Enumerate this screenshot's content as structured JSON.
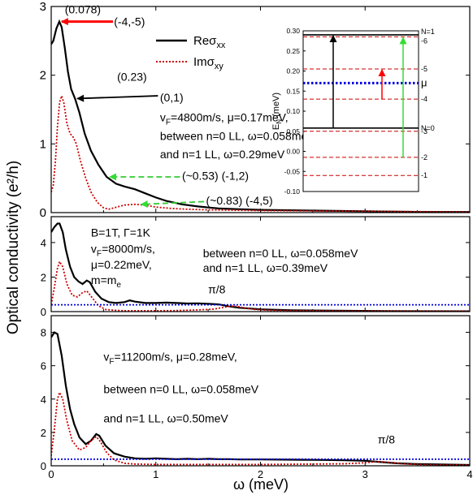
{
  "figure": {
    "y_axis_label": "Optical conductivity  (e²/h)",
    "x_axis_label": "ω (meV)"
  },
  "chart_data": [
    {
      "type": "line",
      "panel": "top",
      "xlim": [
        0,
        4
      ],
      "ylim": [
        0,
        3
      ],
      "x_ticks": [
        0,
        1,
        2,
        3,
        4
      ],
      "y_ticks": [
        0,
        1,
        2,
        3
      ],
      "legend": {
        "placement": "top-center",
        "entries": [
          "Reσxx",
          "Imσxy"
        ]
      },
      "series": [
        {
          "name": "Reσxx",
          "color": "#000000",
          "style": "solid",
          "points": [
            [
              0,
              2.45
            ],
            [
              0.02,
              2.5
            ],
            [
              0.05,
              2.68
            ],
            [
              0.078,
              2.78
            ],
            [
              0.1,
              2.7
            ],
            [
              0.13,
              2.4
            ],
            [
              0.16,
              2.05
            ],
            [
              0.19,
              1.8
            ],
            [
              0.23,
              1.65
            ],
            [
              0.27,
              1.45
            ],
            [
              0.32,
              1.15
            ],
            [
              0.38,
              0.9
            ],
            [
              0.45,
              0.7
            ],
            [
              0.53,
              0.52
            ],
            [
              0.62,
              0.42
            ],
            [
              0.7,
              0.38
            ],
            [
              0.8,
              0.34
            ],
            [
              0.9,
              0.28
            ],
            [
              1.0,
              0.22
            ],
            [
              1.1,
              0.17
            ],
            [
              1.25,
              0.12
            ],
            [
              1.4,
              0.09
            ],
            [
              1.6,
              0.06
            ],
            [
              1.8,
              0.05
            ],
            [
              2.0,
              0.04
            ],
            [
              2.5,
              0.03
            ],
            [
              3.0,
              0.02
            ],
            [
              3.5,
              0.01
            ],
            [
              4.0,
              0.01
            ]
          ]
        },
        {
          "name": "Imσxy",
          "color": "#cc0000",
          "style": "dotted",
          "points": [
            [
              0,
              0.3
            ],
            [
              0.02,
              0.4
            ],
            [
              0.04,
              0.75
            ],
            [
              0.06,
              1.25
            ],
            [
              0.08,
              1.6
            ],
            [
              0.1,
              1.7
            ],
            [
              0.12,
              1.6
            ],
            [
              0.15,
              1.3
            ],
            [
              0.18,
              1.15
            ],
            [
              0.21,
              1.1
            ],
            [
              0.24,
              1.0
            ],
            [
              0.28,
              0.75
            ],
            [
              0.33,
              0.5
            ],
            [
              0.38,
              0.3
            ],
            [
              0.44,
              0.15
            ],
            [
              0.5,
              0.07
            ],
            [
              0.55,
              0.05
            ],
            [
              0.6,
              0.07
            ],
            [
              0.7,
              0.11
            ],
            [
              0.8,
              0.12
            ],
            [
              0.9,
              0.11
            ],
            [
              1.0,
              0.08
            ],
            [
              1.15,
              0.06
            ],
            [
              1.3,
              0.05
            ],
            [
              1.5,
              0.04
            ],
            [
              2.0,
              0.03
            ],
            [
              3.0,
              0.02
            ],
            [
              4.0,
              0.01
            ]
          ]
        }
      ],
      "annotations": [
        {
          "text": "(0.078)",
          "x": 0.13,
          "y": 2.9
        },
        {
          "text": "(-4,-5)",
          "x": 0.6,
          "y": 2.72,
          "arrow_color": "#ff0000"
        },
        {
          "text": "(0.23)",
          "x": 0.63,
          "y": 1.92
        },
        {
          "text": "(0,1)",
          "x": 1.04,
          "y": 1.62,
          "arrow_color": "#000000"
        },
        {
          "text": "vF=4800m/s,  μ=0.17meV,",
          "x": 1.04,
          "y": 1.33
        },
        {
          "text": "between n=0 LL, ω=0.058meV",
          "x": 1.04,
          "y": 1.06
        },
        {
          "text": "and n=1 LL, ω=0.29meV",
          "x": 1.04,
          "y": 0.79
        },
        {
          "text": "(~0.53) (-1,2)",
          "x": 1.25,
          "y": 0.48,
          "arrow_color": "#33cc33"
        },
        {
          "text": "(~0.83) (-4,5)",
          "x": 1.48,
          "y": 0.12,
          "arrow_color": "#33cc33"
        }
      ]
    },
    {
      "type": "line",
      "panel": "inset",
      "ylabel": "E_N (meV)",
      "ylim": [
        -0.1,
        0.3
      ],
      "y_ticks": [
        "0.30",
        "0.25",
        "0.20",
        "0.15",
        "0.10",
        "0.05",
        "0.00",
        "-0.05",
        "-0.10"
      ],
      "levels": [
        {
          "label": "N=1",
          "value": 0.29,
          "style": "solid",
          "color": "#000000"
        },
        {
          "label": "-6",
          "value": 0.285,
          "style": "dashed",
          "color": "#cc0000"
        },
        {
          "label": "-5",
          "value": 0.205,
          "style": "dashed",
          "color": "#cc0000"
        },
        {
          "label": "μ",
          "value": 0.17,
          "style": "dotted",
          "color": "#0000dd"
        },
        {
          "label": "-4",
          "value": 0.13,
          "style": "dashed",
          "color": "#cc0000"
        },
        {
          "label": "N=0",
          "value": 0.058,
          "style": "solid",
          "color": "#000000"
        },
        {
          "label": "-3",
          "value": 0.05,
          "style": "dashed",
          "color": "#cc0000"
        },
        {
          "label": "-2",
          "value": -0.015,
          "style": "dashed",
          "color": "#cc0000"
        },
        {
          "label": "-1",
          "value": -0.06,
          "style": "dashed",
          "color": "#cc0000"
        }
      ],
      "transitions": [
        {
          "from": 0.058,
          "to": 0.29,
          "color": "#000000"
        },
        {
          "from": 0.13,
          "to": 0.205,
          "color": "#ff0000"
        },
        {
          "from": -0.015,
          "to": 0.285,
          "color": "#33dd33"
        }
      ]
    },
    {
      "type": "line",
      "panel": "middle",
      "xlim": [
        0,
        4
      ],
      "ylim": [
        0,
        5.5
      ],
      "x_ticks": [
        0,
        1,
        2,
        3,
        4
      ],
      "y_ticks": [
        0,
        2,
        4
      ],
      "series": [
        {
          "name": "Reσxx",
          "color": "#000000",
          "style": "solid",
          "points": [
            [
              0,
              4.6
            ],
            [
              0.03,
              4.9
            ],
            [
              0.06,
              5.1
            ],
            [
              0.08,
              5.1
            ],
            [
              0.11,
              4.6
            ],
            [
              0.14,
              3.6
            ],
            [
              0.18,
              2.6
            ],
            [
              0.22,
              2.0
            ],
            [
              0.26,
              1.75
            ],
            [
              0.3,
              1.6
            ],
            [
              0.34,
              1.8
            ],
            [
              0.37,
              1.7
            ],
            [
              0.42,
              1.15
            ],
            [
              0.48,
              0.75
            ],
            [
              0.55,
              0.55
            ],
            [
              0.62,
              0.5
            ],
            [
              0.7,
              0.55
            ],
            [
              0.75,
              0.65
            ],
            [
              0.8,
              0.58
            ],
            [
              0.9,
              0.5
            ],
            [
              1.0,
              0.5
            ],
            [
              1.1,
              0.52
            ],
            [
              1.2,
              0.5
            ],
            [
              1.3,
              0.47
            ],
            [
              1.4,
              0.48
            ],
            [
              1.5,
              0.45
            ],
            [
              1.6,
              0.42
            ],
            [
              1.7,
              0.3
            ],
            [
              1.8,
              0.22
            ],
            [
              1.9,
              0.18
            ],
            [
              2.0,
              0.13
            ],
            [
              2.3,
              0.08
            ],
            [
              2.7,
              0.05
            ],
            [
              3.2,
              0.03
            ],
            [
              4.0,
              0.02
            ]
          ]
        },
        {
          "name": "Imσxy",
          "color": "#cc0000",
          "style": "dotted",
          "points": [
            [
              0,
              0.4
            ],
            [
              0.03,
              1.4
            ],
            [
              0.06,
              2.5
            ],
            [
              0.08,
              2.9
            ],
            [
              0.11,
              2.6
            ],
            [
              0.15,
              1.6
            ],
            [
              0.2,
              0.95
            ],
            [
              0.25,
              0.85
            ],
            [
              0.3,
              1.1
            ],
            [
              0.34,
              1.2
            ],
            [
              0.38,
              0.9
            ],
            [
              0.45,
              0.35
            ],
            [
              0.52,
              0.12
            ],
            [
              0.6,
              0.08
            ],
            [
              0.7,
              0.05
            ],
            [
              0.8,
              0.05
            ],
            [
              1.0,
              0.05
            ],
            [
              1.2,
              0.06
            ],
            [
              1.4,
              0.1
            ],
            [
              1.55,
              0.14
            ],
            [
              1.65,
              0.25
            ],
            [
              1.72,
              0.32
            ],
            [
              1.78,
              0.3
            ],
            [
              1.85,
              0.2
            ],
            [
              1.95,
              0.12
            ],
            [
              2.1,
              0.07
            ],
            [
              2.5,
              0.05
            ],
            [
              3.0,
              0.03
            ],
            [
              4.0,
              0.02
            ]
          ]
        },
        {
          "name": "π/8",
          "color": "#0000dd",
          "style": "dotted",
          "points": [
            [
              0,
              0.393
            ],
            [
              4,
              0.393
            ]
          ]
        }
      ],
      "annotations": [
        {
          "text": "B=1T, Γ=1K",
          "x": 0.38,
          "y": 4.35
        },
        {
          "text": "vF=8000m/s,",
          "x": 0.38,
          "y": 3.4
        },
        {
          "text": "μ=0.22meV,",
          "x": 0.38,
          "y": 2.5
        },
        {
          "text": "m=me",
          "x": 0.38,
          "y": 1.6
        },
        {
          "text": "between n=0 LL, ω=0.058meV",
          "x": 1.45,
          "y": 3.15
        },
        {
          "text": "and n=1 LL, ω=0.39meV",
          "x": 1.45,
          "y": 2.3
        },
        {
          "text": "π/8",
          "x": 1.5,
          "y": 1.05
        }
      ]
    },
    {
      "type": "line",
      "panel": "bottom",
      "xlim": [
        0,
        4
      ],
      "ylim": [
        0,
        9
      ],
      "x_ticks": [
        0,
        1,
        2,
        3,
        4
      ],
      "y_ticks": [
        0,
        2,
        4,
        6,
        8
      ],
      "series": [
        {
          "name": "Reσxx",
          "color": "#000000",
          "style": "solid",
          "points": [
            [
              0,
              7.7
            ],
            [
              0.03,
              8.0
            ],
            [
              0.06,
              7.9
            ],
            [
              0.1,
              6.6
            ],
            [
              0.14,
              4.8
            ],
            [
              0.18,
              3.4
            ],
            [
              0.22,
              2.5
            ],
            [
              0.27,
              1.7
            ],
            [
              0.33,
              1.3
            ],
            [
              0.38,
              1.5
            ],
            [
              0.43,
              1.9
            ],
            [
              0.46,
              1.8
            ],
            [
              0.52,
              1.2
            ],
            [
              0.6,
              0.75
            ],
            [
              0.7,
              0.55
            ],
            [
              0.8,
              0.45
            ],
            [
              0.9,
              0.42
            ],
            [
              1.0,
              0.45
            ],
            [
              1.1,
              0.42
            ],
            [
              1.2,
              0.4
            ],
            [
              1.3,
              0.42
            ],
            [
              1.4,
              0.4
            ],
            [
              1.5,
              0.42
            ],
            [
              1.6,
              0.4
            ],
            [
              1.7,
              0.4
            ],
            [
              1.8,
              0.38
            ],
            [
              1.9,
              0.38
            ],
            [
              2.0,
              0.38
            ],
            [
              2.2,
              0.37
            ],
            [
              2.4,
              0.36
            ],
            [
              2.6,
              0.35
            ],
            [
              2.8,
              0.33
            ],
            [
              3.0,
              0.3
            ],
            [
              3.1,
              0.25
            ],
            [
              3.2,
              0.2
            ],
            [
              3.3,
              0.15
            ],
            [
              3.5,
              0.1
            ],
            [
              4.0,
              0.05
            ]
          ]
        },
        {
          "name": "Imσxy",
          "color": "#cc0000",
          "style": "dotted",
          "points": [
            [
              0,
              0.6
            ],
            [
              0.03,
              2.2
            ],
            [
              0.06,
              4.0
            ],
            [
              0.08,
              4.4
            ],
            [
              0.11,
              4.0
            ],
            [
              0.15,
              2.7
            ],
            [
              0.2,
              1.5
            ],
            [
              0.27,
              0.95
            ],
            [
              0.33,
              1.1
            ],
            [
              0.38,
              1.5
            ],
            [
              0.43,
              1.75
            ],
            [
              0.47,
              1.45
            ],
            [
              0.53,
              0.8
            ],
            [
              0.6,
              0.35
            ],
            [
              0.7,
              0.15
            ],
            [
              0.8,
              0.1
            ],
            [
              1.0,
              0.08
            ],
            [
              1.5,
              0.08
            ],
            [
              2.0,
              0.08
            ],
            [
              2.5,
              0.1
            ],
            [
              2.8,
              0.12
            ],
            [
              3.0,
              0.18
            ],
            [
              3.1,
              0.25
            ],
            [
              3.2,
              0.22
            ],
            [
              3.35,
              0.12
            ],
            [
              3.6,
              0.06
            ],
            [
              4.0,
              0.04
            ]
          ]
        },
        {
          "name": "π/8",
          "color": "#0000dd",
          "style": "dotted",
          "points": [
            [
              0,
              0.393
            ],
            [
              4,
              0.393
            ]
          ]
        }
      ],
      "annotations": [
        {
          "text": "vF=11200m/s, μ=0.28meV,",
          "x": 0.5,
          "y": 6.3
        },
        {
          "text": "between n=0 LL, ω=0.058meV",
          "x": 0.5,
          "y": 4.35
        },
        {
          "text": "and n=1 LL, ω=0.50meV",
          "x": 0.5,
          "y": 2.6
        },
        {
          "text": "π/8",
          "x": 3.12,
          "y": 1.35
        }
      ]
    }
  ]
}
